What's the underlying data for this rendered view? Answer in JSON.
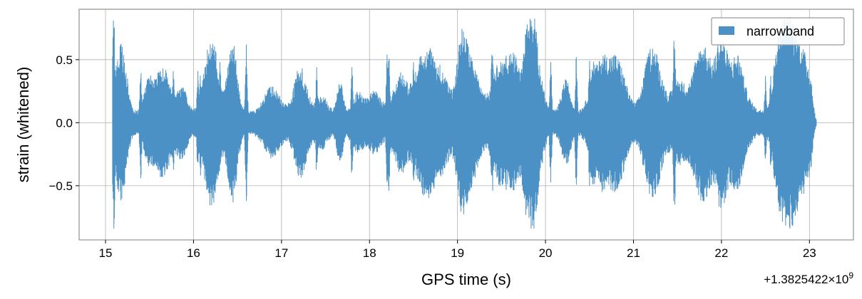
{
  "chart_data": {
    "type": "line",
    "xlabel": "GPS time (s)",
    "ylabel": "strain (whitened)",
    "x_offset_label": "+1.3825422×10",
    "x_offset_exponent": "9",
    "xlim": [
      14.7,
      23.5
    ],
    "ylim": [
      -0.93,
      0.9
    ],
    "x_ticks": [
      15,
      16,
      17,
      18,
      19,
      20,
      21,
      22,
      23
    ],
    "x_tick_labels": [
      "15",
      "16",
      "17",
      "18",
      "19",
      "20",
      "21",
      "22",
      "23"
    ],
    "y_ticks": [
      -0.5,
      0.0,
      0.5
    ],
    "y_tick_labels": [
      "−0.5",
      "0.0",
      "0.5"
    ],
    "grid": true,
    "legend_position": "top-right",
    "series": [
      {
        "name": "narrowband",
        "color": "#4c91c5",
        "x_range": [
          15.08,
          23.08
        ],
        "peaks": [
          {
            "x": 15.09,
            "y": 0.81
          },
          {
            "x": 15.095,
            "y": -0.84
          },
          {
            "x": 15.25,
            "y": 0.35
          },
          {
            "x": 15.4,
            "y": -0.44
          },
          {
            "x": 15.5,
            "y": 0.34
          },
          {
            "x": 15.77,
            "y": 0.41
          },
          {
            "x": 16.05,
            "y": 0.41
          },
          {
            "x": 16.08,
            "y": -0.42
          },
          {
            "x": 16.3,
            "y": 0.48
          },
          {
            "x": 16.6,
            "y": 0.62
          },
          {
            "x": 16.6,
            "y": -0.62
          },
          {
            "x": 17.4,
            "y": 0.44
          },
          {
            "x": 17.8,
            "y": 0.44
          },
          {
            "x": 18.2,
            "y": 0.54
          },
          {
            "x": 18.22,
            "y": -0.54
          },
          {
            "x": 18.5,
            "y": 0.48
          },
          {
            "x": 18.8,
            "y": 0.46
          },
          {
            "x": 19.39,
            "y": 0.54
          },
          {
            "x": 19.4,
            "y": -0.54
          },
          {
            "x": 20.06,
            "y": 0.48
          },
          {
            "x": 20.35,
            "y": 0.52
          },
          {
            "x": 20.5,
            "y": -0.5
          },
          {
            "x": 21.46,
            "y": 0.65
          },
          {
            "x": 21.47,
            "y": -0.65
          },
          {
            "x": 21.7,
            "y": 0.48
          },
          {
            "x": 22.5,
            "y": 0.37
          },
          {
            "x": 22.56,
            "y": 0.37
          },
          {
            "x": 23.0,
            "y": 0.3
          }
        ]
      }
    ]
  }
}
